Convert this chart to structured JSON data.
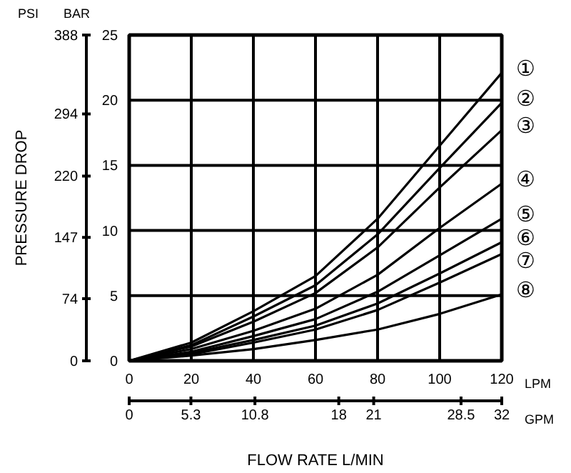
{
  "chart_data": {
    "type": "line",
    "xlabel": "FLOW RATE L/MIN",
    "y2label": "PRESSURE DROP",
    "annotations": [
      "PSI",
      "BAR",
      "LPM",
      "GPM"
    ],
    "x": [
      0,
      20,
      40,
      60,
      80,
      100,
      120
    ],
    "xlim": [
      0,
      120
    ],
    "xticks": [
      0,
      20,
      40,
      60,
      80,
      100,
      120
    ],
    "x2lim": [
      0,
      32
    ],
    "x2ticks": [
      0,
      5.3,
      10.8,
      18,
      21,
      28.5,
      32
    ],
    "ylim": [
      0,
      25
    ],
    "yticks": [
      0,
      5,
      10,
      15,
      20,
      25
    ],
    "y2lim": [
      0,
      388
    ],
    "y2ticks": [
      0,
      74,
      147,
      220,
      294,
      388
    ],
    "grid": true,
    "legend": false,
    "marker": "none",
    "line_style": "solid",
    "series": [
      {
        "name": "①",
        "color": "#000000",
        "values": [
          0,
          1.4,
          3.8,
          6.5,
          10.9,
          16.5,
          22.1
        ]
      },
      {
        "name": "②",
        "color": "#000000",
        "values": [
          0,
          1.2,
          3.4,
          5.8,
          9.7,
          14.8,
          19.8
        ]
      },
      {
        "name": "③",
        "color": "#000000",
        "values": [
          0,
          1.1,
          3.0,
          5.2,
          8.7,
          13.3,
          17.7
        ]
      },
      {
        "name": "④",
        "color": "#000000",
        "values": [
          0,
          0.9,
          2.3,
          4.0,
          6.6,
          10.2,
          13.6
        ]
      },
      {
        "name": "⑤",
        "color": "#000000",
        "values": [
          0,
          0.7,
          1.9,
          3.2,
          5.3,
          8.1,
          10.9
        ]
      },
      {
        "name": "⑥",
        "color": "#000000",
        "values": [
          0,
          0.6,
          1.6,
          2.7,
          4.4,
          6.7,
          9.1
        ]
      },
      {
        "name": "⑦",
        "color": "#000000",
        "values": [
          0,
          0.5,
          1.4,
          2.4,
          3.9,
          6.0,
          8.2
        ]
      },
      {
        "name": "⑧",
        "color": "#000000",
        "values": [
          0,
          0.4,
          0.9,
          1.6,
          2.4,
          3.6,
          5.1
        ]
      }
    ]
  }
}
